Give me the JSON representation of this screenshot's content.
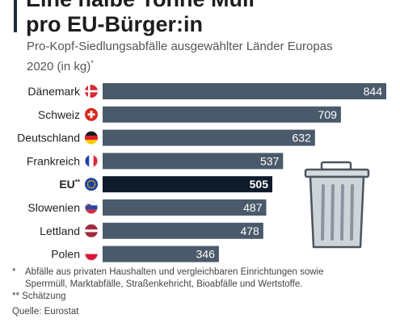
{
  "header": {
    "title_line1": "Eine halbe Tonne Müll",
    "title_line2": "pro EU-Bürger:in",
    "subtitle_line1": "Pro-Kopf-Siedlungsabfälle ausgewählter Länder Europas",
    "subtitle_line2": "2020 (in kg)",
    "subtitle_mark": "*"
  },
  "chart_data": {
    "type": "bar",
    "orientation": "horizontal",
    "categories": [
      "Dänemark",
      "Schweiz",
      "Deutschland",
      "Frankreich",
      "EU",
      "Slowenien",
      "Lettland",
      "Polen"
    ],
    "category_marks": [
      "",
      "",
      "",
      "",
      "**",
      "",
      "",
      ""
    ],
    "values": [
      844,
      709,
      632,
      537,
      505,
      487,
      478,
      346
    ],
    "value_labels": [
      "844",
      "709",
      "632",
      "537",
      "505",
      "487",
      "478",
      "346"
    ],
    "highlight_index": 4,
    "flags": [
      "denmark-flag-icon",
      "switzerland-flag-icon",
      "germany-flag-icon",
      "france-flag-icon",
      "eu-flag-icon",
      "slovenia-flag-icon",
      "latvia-flag-icon",
      "poland-flag-icon"
    ],
    "xlim": [
      0,
      844
    ],
    "grid": false,
    "colors": {
      "bar": "#4a5a6a",
      "highlight": "#0e1b2b",
      "label": "#ffffff"
    },
    "illustration": "trash-can-icon"
  },
  "footnotes": {
    "note1_mark": "*",
    "note1_line1": "Abfälle aus privaten Haushalten und vergleichbaren Einrichtungen sowie",
    "note1_line2": "Sperrmüll, Marktabfälle, Straßenkehricht, Bioabfälle und Wertstoffe.",
    "note2": "** Schätzung",
    "source": "Quelle: Eurostat"
  }
}
